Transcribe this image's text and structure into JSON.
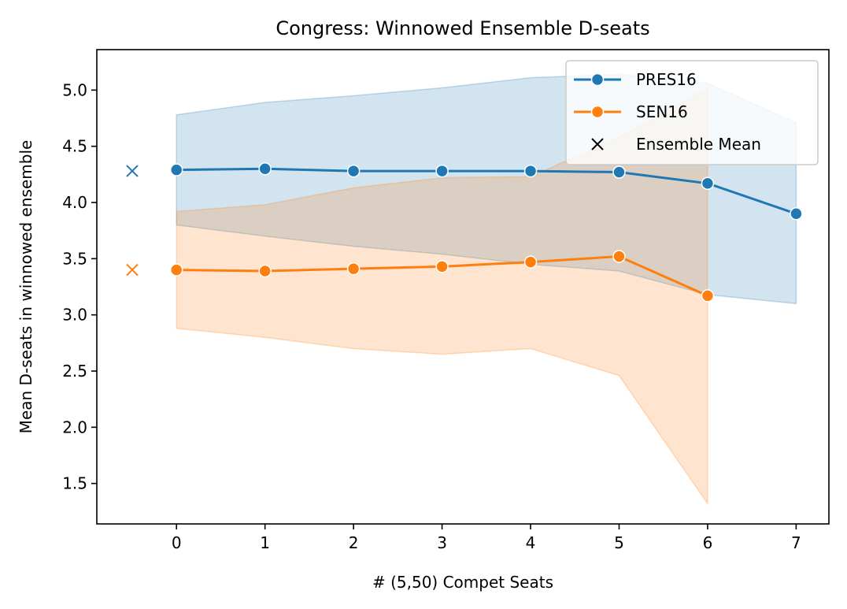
{
  "chart_data": {
    "type": "line",
    "title": "Congress: Winnowed Ensemble D-seats",
    "xlabel": "# (5,50) Compet Seats",
    "ylabel": "Mean D-seats in winnowed ensemble",
    "xlim": [
      -0.9,
      7.37
    ],
    "ylim": [
      1.14,
      5.36
    ],
    "x_ticks": [
      0,
      1,
      2,
      3,
      4,
      5,
      6,
      7
    ],
    "y_ticks": [
      1.5,
      2.0,
      2.5,
      3.0,
      3.5,
      4.0,
      4.5,
      5.0
    ],
    "x_tick_labels": [
      "0",
      "1",
      "2",
      "3",
      "4",
      "5",
      "6",
      "7"
    ],
    "y_tick_labels": [
      "1.5",
      "2.0",
      "2.5",
      "3.0",
      "3.5",
      "4.0",
      "4.5",
      "5.0"
    ],
    "grid": false,
    "legend_position": "top-right",
    "series": [
      {
        "name": "PRES16",
        "color": "#1f77b4",
        "marker": "circle",
        "x": [
          0,
          1,
          2,
          3,
          4,
          5,
          6,
          7
        ],
        "y": [
          4.29,
          4.3,
          4.28,
          4.28,
          4.28,
          4.27,
          4.17,
          3.9
        ],
        "upper": [
          4.78,
          4.89,
          4.95,
          5.02,
          5.11,
          5.14,
          5.06,
          4.71
        ],
        "lower": [
          3.8,
          3.7,
          3.61,
          3.54,
          3.45,
          3.39,
          3.18,
          3.1
        ]
      },
      {
        "name": "SEN16",
        "color": "#ff7f0e",
        "marker": "circle",
        "x": [
          0,
          1,
          2,
          3,
          4,
          5,
          6
        ],
        "y": [
          3.4,
          3.39,
          3.41,
          3.43,
          3.47,
          3.52,
          3.17
        ],
        "upper": [
          3.92,
          3.98,
          4.13,
          4.22,
          4.23,
          4.58,
          5.02
        ],
        "lower": [
          2.88,
          2.8,
          2.7,
          2.65,
          2.7,
          2.46,
          1.32
        ]
      }
    ],
    "ensemble_means": [
      {
        "name": "Ensemble Mean",
        "series": "PRES16",
        "x": -0.5,
        "y": 4.28,
        "color": "#1f77b4",
        "marker": "x"
      },
      {
        "name": "Ensemble Mean",
        "series": "SEN16",
        "x": -0.5,
        "y": 3.4,
        "color": "#ff7f0e",
        "marker": "x"
      }
    ],
    "legend": [
      {
        "label": "PRES16",
        "color": "#1f77b4",
        "marker": "line-circle"
      },
      {
        "label": "SEN16",
        "color": "#ff7f0e",
        "marker": "line-circle"
      },
      {
        "label": "Ensemble Mean",
        "color": "#000000",
        "marker": "x"
      }
    ]
  }
}
